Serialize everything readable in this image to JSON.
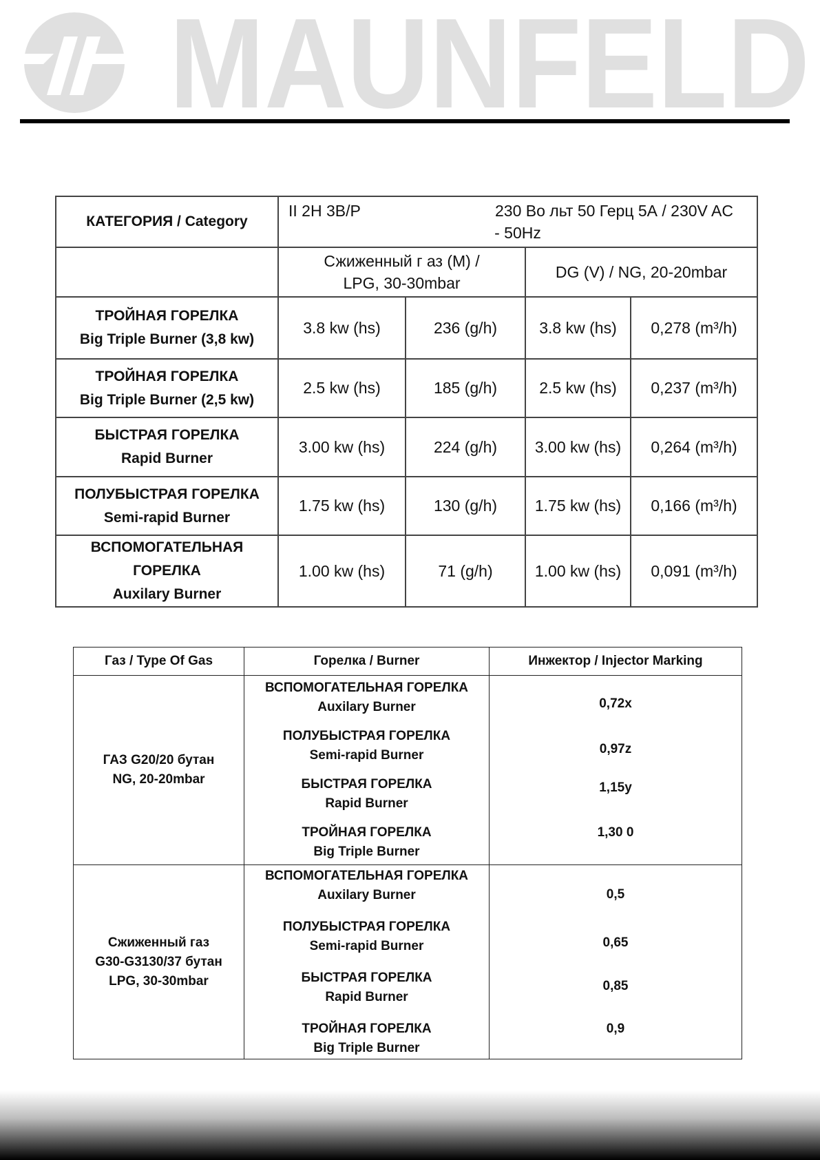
{
  "brand": {
    "logo_text": "MAUNFELD",
    "logo_color": "#e0e0e0"
  },
  "specs": {
    "category_label": "КАТЕГОРИЯ / Category",
    "category_value": "II 2H 3B/P",
    "power_value": "230 Во льт  50 Герц 5А / 230V AC",
    "power_value_cont": "- 50Hz",
    "lpg_header": "Сжиженный г  аз  (M) / LPG, 30-30mbar",
    "ng_header": "DG (V) / NG,   20-20mbar",
    "rows": [
      {
        "name_ru": "ТРОЙНАЯ ГОРЕЛКА",
        "name_en": "Big Triple Burner (3,8 kw)",
        "lpg_power": "3.8 kw (hs)",
        "lpg_flow": "236 (g/h)",
        "ng_power": "3.8 kw (hs)",
        "ng_flow": "0,278 (m³/h)"
      },
      {
        "name_ru": "ТРОЙНАЯ ГОРЕЛКА",
        "name_en": "Big Triple Burner (2,5 kw)",
        "lpg_power": "2.5 kw (hs)",
        "lpg_flow": "185 (g/h)",
        "ng_power": "2.5 kw (hs)",
        "ng_flow": "0,237 (m³/h)"
      },
      {
        "name_ru": "БЫСТРАЯ ГОРЕЛКА",
        "name_en": "Rapid Burner",
        "lpg_power": "3.00 kw (hs)",
        "lpg_flow": "224 (g/h)",
        "ng_power": "3.00 kw (hs)",
        "ng_flow": "0,264 (m³/h)"
      },
      {
        "name_ru": "ПОЛУБЫСТРАЯ ГОРЕЛКА",
        "name_en": "Semi-rapid Burner",
        "lpg_power": "1.75 kw (hs)",
        "lpg_flow": "130 (g/h)",
        "ng_power": "1.75 kw (hs)",
        "ng_flow": "0,166 (m³/h)"
      },
      {
        "name_ru": "ВСПОМОГАТЕЛЬНАЯ ГОРЕЛКА",
        "name_en": "Auxilary Burner",
        "lpg_power": "1.00 kw (hs)",
        "lpg_flow": "71 (g/h)",
        "ng_power": "1.00 kw (hs)",
        "ng_flow": "0,091 (m³/h)"
      }
    ]
  },
  "injectors": {
    "headers": [
      "Газ / Type Of Gas",
      "Горелка / Burner",
      "Инжектор / Injector Marking"
    ],
    "groups": [
      {
        "gas_line1": "ГАЗ G20/20 бутан",
        "gas_line2": "NG,   20-20mbar",
        "gas_line3": "",
        "burners": [
          {
            "ru": "ВСПОМОГАТЕЛЬНАЯ ГОРЕЛКА",
            "en": "Auxilary Burner",
            "marking": "0,72x"
          },
          {
            "ru": "ПОЛУБЫСТРАЯ ГОРЕЛКА",
            "en": "Semi-rapid Burner",
            "marking": "0,97z"
          },
          {
            "ru": "БЫСТРАЯ ГОРЕЛКА",
            "en": "Rapid Burner",
            "marking": "1,15y"
          },
          {
            "ru": "ТРОЙНАЯ ГОРЕЛКА",
            "en": "Big Triple Burner",
            "marking": "1,30 0"
          }
        ]
      },
      {
        "gas_line1": "Сжиженный газ",
        "gas_line2": "G30-G3130/37 бутан",
        "gas_line3": "LPG, 30-30mbar",
        "burners": [
          {
            "ru": "ВСПОМОГАТЕЛЬНАЯ ГОРЕЛКА",
            "en": "Auxilary Burner",
            "marking": "0,5"
          },
          {
            "ru": "ПОЛУБЫСТРАЯ ГОРЕЛКА",
            "en": "Semi-rapid Burner",
            "marking": "0,65"
          },
          {
            "ru": "БЫСТРАЯ ГОРЕЛКА",
            "en": "Rapid Burner",
            "marking": "0,85"
          },
          {
            "ru": "ТРОЙНАЯ ГОРЕЛКА",
            "en": "Big Triple Burner",
            "marking": "0,9"
          }
        ]
      }
    ]
  }
}
